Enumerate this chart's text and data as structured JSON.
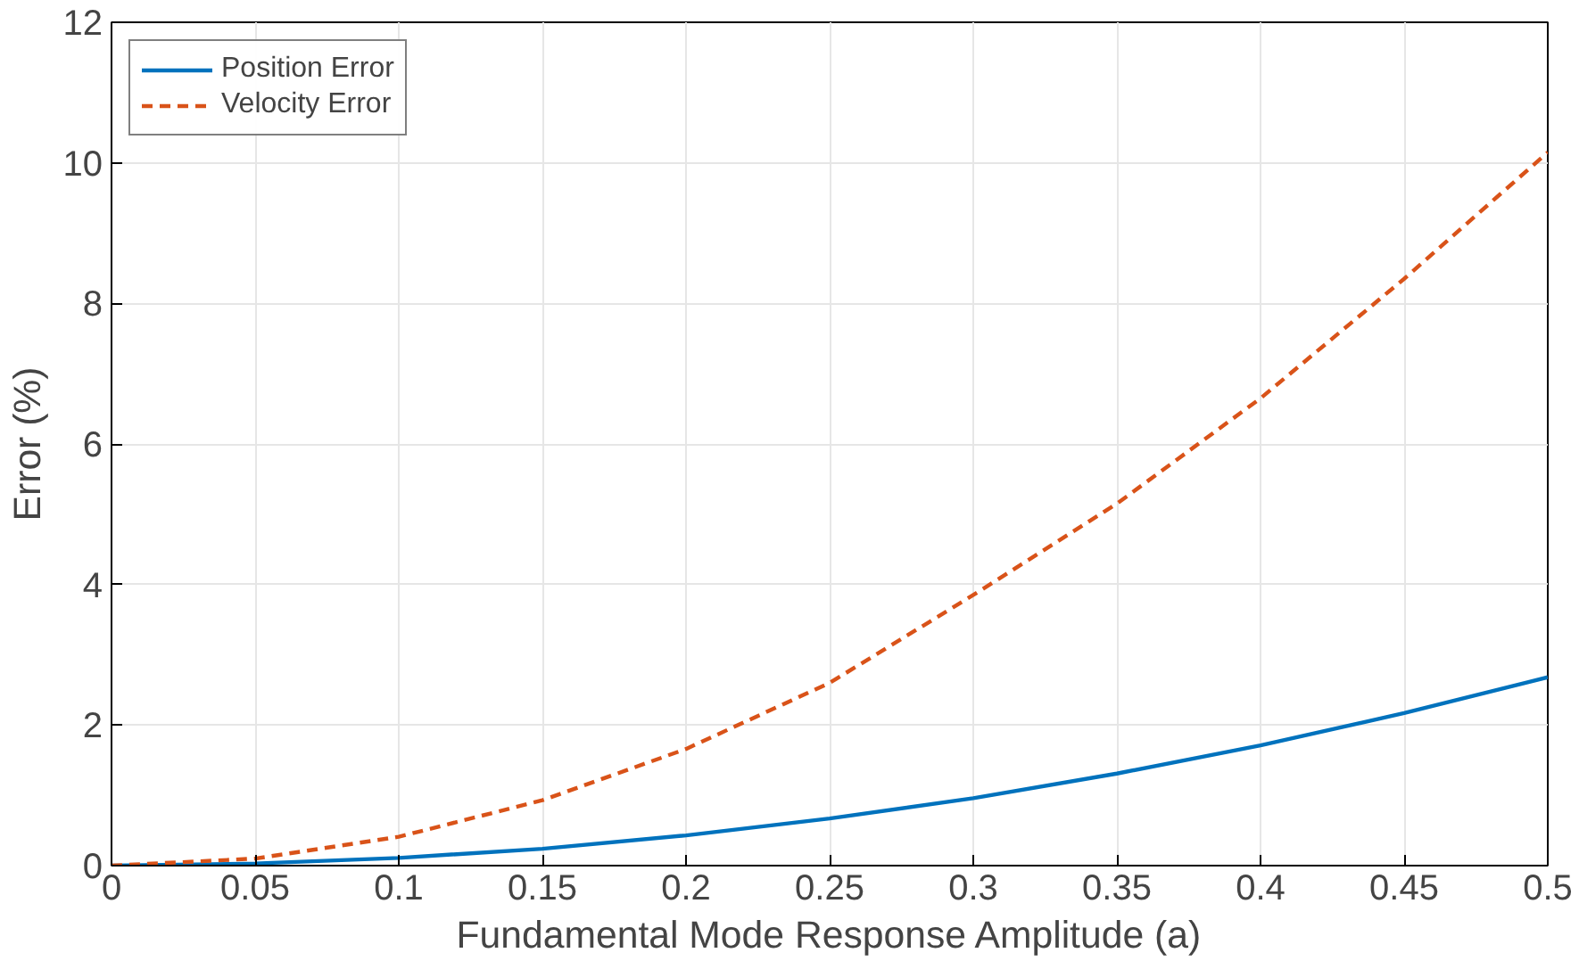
{
  "chart_data": {
    "type": "line",
    "xlabel": "Fundamental Mode Response Amplitude (a)",
    "ylabel": "Error (%)",
    "x": [
      0,
      0.05,
      0.1,
      0.15,
      0.2,
      0.25,
      0.3,
      0.35,
      0.4,
      0.45,
      0.5
    ],
    "series": [
      {
        "name": "Position Error",
        "color": "#0072bd",
        "line_style": "solid",
        "values": [
          0,
          0.03,
          0.11,
          0.24,
          0.43,
          0.67,
          0.96,
          1.31,
          1.71,
          2.17,
          2.68
        ]
      },
      {
        "name": "Velocity Error",
        "color": "#d95319",
        "line_style": "dashed",
        "values": [
          0,
          0.1,
          0.41,
          0.93,
          1.66,
          2.6,
          3.85,
          5.15,
          6.65,
          8.35,
          10.15
        ]
      }
    ],
    "xlim": [
      0,
      0.5
    ],
    "ylim": [
      0,
      12
    ],
    "xticks": [
      0,
      0.05,
      0.1,
      0.15,
      0.2,
      0.25,
      0.3,
      0.35,
      0.4,
      0.45,
      0.5
    ],
    "yticks": [
      0,
      2,
      4,
      6,
      8,
      10,
      12
    ],
    "grid": true,
    "legend": "top left",
    "marker": "none"
  }
}
